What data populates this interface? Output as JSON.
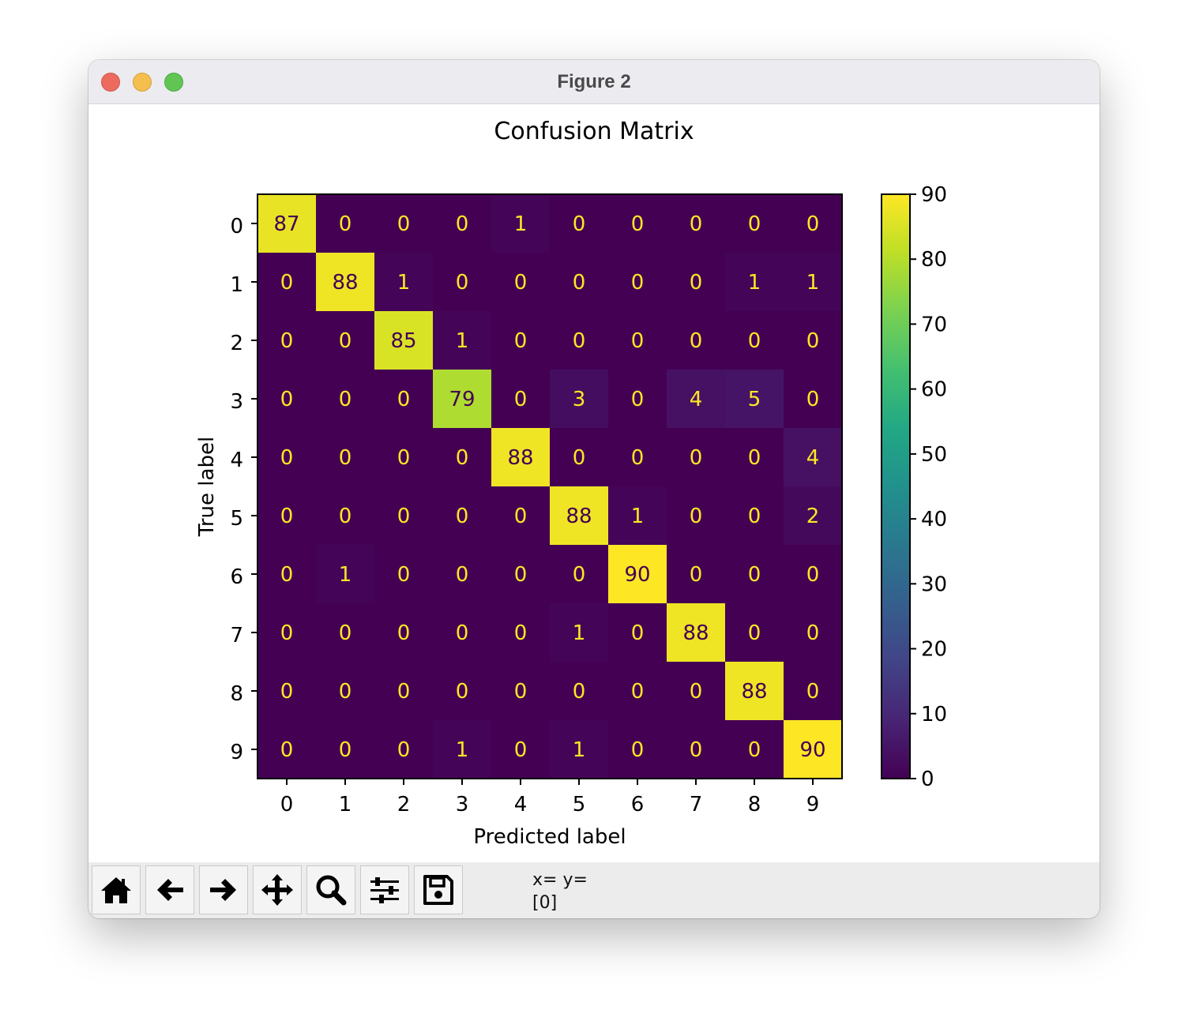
{
  "window": {
    "title": "Figure 2"
  },
  "chart_data": {
    "type": "heatmap",
    "title": "Confusion Matrix",
    "xlabel": "Predicted label",
    "ylabel": "True label",
    "x_categories": [
      "0",
      "1",
      "2",
      "3",
      "4",
      "5",
      "6",
      "7",
      "8",
      "9"
    ],
    "y_categories": [
      "0",
      "1",
      "2",
      "3",
      "4",
      "5",
      "6",
      "7",
      "8",
      "9"
    ],
    "values": [
      [
        87,
        0,
        0,
        0,
        1,
        0,
        0,
        0,
        0,
        0
      ],
      [
        0,
        88,
        1,
        0,
        0,
        0,
        0,
        0,
        1,
        1
      ],
      [
        0,
        0,
        85,
        1,
        0,
        0,
        0,
        0,
        0,
        0
      ],
      [
        0,
        0,
        0,
        79,
        0,
        3,
        0,
        4,
        5,
        0
      ],
      [
        0,
        0,
        0,
        0,
        88,
        0,
        0,
        0,
        0,
        4
      ],
      [
        0,
        0,
        0,
        0,
        0,
        88,
        1,
        0,
        0,
        2
      ],
      [
        0,
        1,
        0,
        0,
        0,
        0,
        90,
        0,
        0,
        0
      ],
      [
        0,
        0,
        0,
        0,
        0,
        1,
        0,
        88,
        0,
        0
      ],
      [
        0,
        0,
        0,
        0,
        0,
        0,
        0,
        0,
        88,
        0
      ],
      [
        0,
        0,
        0,
        1,
        0,
        1,
        0,
        0,
        0,
        90
      ]
    ],
    "colormap": "viridis",
    "colorbar": {
      "range": [
        0,
        90
      ],
      "ticks": [
        0,
        10,
        20,
        30,
        40,
        50,
        60,
        70,
        80,
        90
      ]
    }
  },
  "toolbar": {
    "buttons": [
      {
        "name": "home-button",
        "icon": "home-icon"
      },
      {
        "name": "back-button",
        "icon": "arrow-left-icon"
      },
      {
        "name": "forward-button",
        "icon": "arrow-right-icon"
      },
      {
        "name": "pan-button",
        "icon": "move-icon"
      },
      {
        "name": "zoom-button",
        "icon": "magnifier-icon"
      },
      {
        "name": "configure-subplots-button",
        "icon": "sliders-icon"
      },
      {
        "name": "save-button",
        "icon": "floppy-disk-icon"
      }
    ],
    "coords_line1": "x= y=",
    "coords_line2": "[0]"
  }
}
